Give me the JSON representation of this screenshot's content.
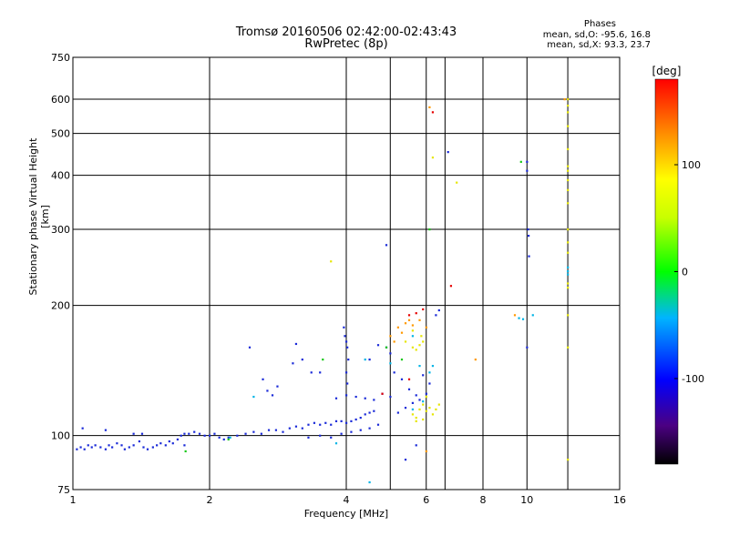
{
  "chart_data": {
    "type": "scatter",
    "title": "Tromsø 20160506 02:42:00-02:43:43",
    "subtitle": "RwPretec (8p)",
    "xlabel": "Frequency [MHz]",
    "ylabel": "Stationary phase Virtual Height [km]",
    "x_scale": "log",
    "y_scale": "log",
    "xlim": [
      1,
      16
    ],
    "ylim": [
      75,
      750
    ],
    "x_ticks": [
      "1",
      "2",
      "4",
      "6",
      "8",
      "10",
      "16"
    ],
    "x_tick_values": [
      1,
      2,
      4,
      6,
      8,
      10,
      16
    ],
    "y_ticks": [
      "75",
      "100",
      "200",
      "300",
      "400",
      "500",
      "600",
      "750"
    ],
    "y_tick_values": [
      75,
      100,
      200,
      300,
      400,
      500,
      600,
      750
    ],
    "grid": true,
    "phases_header": "Phases",
    "phases_o": "mean, sd,O: -95.6, 16.8",
    "phases_x": "mean, sd,X:  93.3, 23.7",
    "colorbar": {
      "label": "[deg]",
      "ticks": [
        "100",
        "0",
        "-100"
      ],
      "tick_values": [
        100,
        0,
        -100
      ],
      "range": [
        -180,
        180
      ]
    },
    "series": [
      {
        "values": [
          [
            1.02,
            93
          ],
          [
            1.04,
            94
          ],
          [
            1.06,
            93
          ],
          [
            1.08,
            95
          ],
          [
            1.1,
            94
          ],
          [
            1.12,
            95
          ],
          [
            1.15,
            94
          ],
          [
            1.18,
            93
          ],
          [
            1.2,
            95
          ],
          [
            1.22,
            94
          ],
          [
            1.25,
            96
          ],
          [
            1.28,
            95
          ],
          [
            1.3,
            93
          ],
          [
            1.33,
            94
          ],
          [
            1.36,
            95
          ],
          [
            1.4,
            97
          ],
          [
            1.43,
            94
          ],
          [
            1.46,
            93
          ],
          [
            1.5,
            94
          ],
          [
            1.53,
            95
          ],
          [
            1.56,
            96
          ],
          [
            1.6,
            95
          ],
          [
            1.63,
            97
          ],
          [
            1.66,
            96
          ],
          [
            1.7,
            98
          ],
          [
            1.73,
            100
          ],
          [
            1.76,
            101
          ],
          [
            1.8,
            101
          ],
          [
            1.85,
            102
          ],
          [
            1.9,
            101
          ],
          [
            1.95,
            100
          ],
          [
            2.0,
            100
          ],
          [
            2.05,
            101
          ],
          [
            2.1,
            99
          ],
          [
            2.15,
            98
          ],
          [
            2.2,
            99
          ],
          [
            2.3,
            100
          ],
          [
            2.4,
            101
          ],
          [
            2.5,
            102
          ],
          [
            2.6,
            101
          ],
          [
            2.7,
            103
          ],
          [
            2.8,
            103
          ],
          [
            2.9,
            102
          ],
          [
            3.0,
            104
          ],
          [
            3.1,
            105
          ],
          [
            3.2,
            104
          ],
          [
            3.3,
            106
          ],
          [
            3.4,
            107
          ],
          [
            3.5,
            106
          ],
          [
            3.6,
            107
          ],
          [
            3.7,
            106
          ],
          [
            3.8,
            108
          ],
          [
            3.9,
            108
          ],
          [
            4.0,
            107
          ],
          [
            4.1,
            108
          ],
          [
            4.2,
            109
          ],
          [
            4.3,
            110
          ],
          [
            4.4,
            112
          ],
          [
            4.5,
            113
          ],
          [
            4.6,
            114
          ],
          [
            3.3,
            99
          ],
          [
            3.5,
            100
          ],
          [
            3.7,
            99
          ],
          [
            3.9,
            101
          ],
          [
            4.1,
            102
          ],
          [
            4.3,
            103
          ],
          [
            4.5,
            104
          ],
          [
            4.7,
            106
          ],
          [
            3.8,
            122
          ],
          [
            4.0,
            124
          ],
          [
            4.2,
            123
          ],
          [
            4.4,
            122
          ],
          [
            4.6,
            121
          ],
          [
            4.8,
            125
          ],
          [
            5.0,
            123
          ],
          [
            1.05,
            104
          ],
          [
            1.18,
            103
          ],
          [
            1.36,
            101
          ],
          [
            1.42,
            101
          ],
          [
            1.76,
            95
          ],
          [
            2.45,
            160
          ],
          [
            2.62,
            135
          ],
          [
            2.68,
            127
          ],
          [
            2.75,
            124
          ],
          [
            2.82,
            130
          ],
          [
            3.1,
            163
          ],
          [
            3.05,
            147
          ],
          [
            3.2,
            150
          ],
          [
            3.35,
            140
          ],
          [
            3.5,
            140
          ],
          [
            3.95,
            178
          ],
          [
            3.97,
            170
          ],
          [
            4.0,
            165
          ],
          [
            4.02,
            160
          ],
          [
            4.04,
            150
          ],
          [
            4.0,
            140
          ],
          [
            4.02,
            132
          ],
          [
            4.5,
            150
          ],
          [
            4.7,
            162
          ],
          [
            4.9,
            160
          ],
          [
            5.0,
            155
          ],
          [
            5.1,
            140
          ],
          [
            5.3,
            135
          ],
          [
            5.5,
            128
          ],
          [
            5.7,
            124
          ],
          [
            5.9,
            138
          ],
          [
            5.2,
            113
          ],
          [
            5.4,
            116
          ],
          [
            5.6,
            119
          ],
          [
            5.8,
            121
          ],
          [
            6.0,
            125
          ],
          [
            6.1,
            132
          ],
          [
            4.9,
            276
          ],
          [
            6.7,
            453
          ],
          [
            6.3,
            190
          ],
          [
            6.4,
            195
          ],
          [
            5.4,
            88
          ],
          [
            5.7,
            95
          ],
          [
            10.0,
            430
          ],
          [
            10.0,
            410
          ],
          [
            10.05,
            300
          ],
          [
            10.08,
            290
          ],
          [
            10.1,
            260
          ],
          [
            10.0,
            160
          ]
        ]
      },
      {
        "values": [
          [
            2.22,
            99
          ],
          [
            2.5,
            123
          ],
          [
            3.8,
            96
          ],
          [
            4.5,
            78
          ],
          [
            4.4,
            150
          ],
          [
            5.6,
            115
          ],
          [
            5.8,
            145
          ],
          [
            5.9,
            120
          ],
          [
            6.2,
            145
          ],
          [
            5.0,
            147
          ],
          [
            6.1,
            140
          ],
          [
            5.6,
            170
          ],
          [
            9.6,
            187
          ],
          [
            9.8,
            186
          ],
          [
            10.3,
            190
          ],
          [
            12.3,
            245
          ],
          [
            12.3,
            240
          ],
          [
            12.3,
            236
          ]
        ]
      },
      {
        "values": [
          [
            1.77,
            92
          ],
          [
            2.2,
            98
          ],
          [
            3.55,
            150
          ],
          [
            4.9,
            160
          ],
          [
            5.3,
            150
          ],
          [
            9.7,
            430
          ],
          [
            6.1,
            300
          ]
        ]
      },
      {
        "values": [
          [
            5.6,
            112
          ],
          [
            5.7,
            110
          ],
          [
            5.8,
            115
          ],
          [
            5.9,
            118
          ],
          [
            6.0,
            114
          ],
          [
            6.1,
            116
          ],
          [
            6.2,
            112
          ],
          [
            6.3,
            115
          ],
          [
            6.4,
            118
          ],
          [
            5.7,
            108
          ],
          [
            5.9,
            109
          ],
          [
            6.0,
            123
          ],
          [
            5.6,
            160
          ],
          [
            5.7,
            158
          ],
          [
            5.8,
            162
          ],
          [
            5.9,
            165
          ],
          [
            5.85,
            170
          ],
          [
            5.6,
            175
          ],
          [
            5.4,
            165
          ],
          [
            12.3,
            600
          ],
          [
            12.3,
            580
          ],
          [
            12.3,
            560
          ],
          [
            12.3,
            520
          ],
          [
            12.3,
            460
          ],
          [
            12.3,
            420
          ],
          [
            12.3,
            410
          ],
          [
            12.3,
            390
          ],
          [
            12.3,
            370
          ],
          [
            12.3,
            345
          ],
          [
            12.3,
            300
          ],
          [
            12.3,
            280
          ],
          [
            12.3,
            265
          ],
          [
            12.3,
            225
          ],
          [
            12.3,
            220
          ],
          [
            12.3,
            190
          ],
          [
            12.3,
            160
          ],
          [
            12.3,
            88
          ],
          [
            7.0,
            385
          ],
          [
            6.2,
            440
          ],
          [
            3.7,
            253
          ]
        ]
      },
      {
        "values": [
          [
            5.2,
            178
          ],
          [
            5.4,
            182
          ],
          [
            5.5,
            185
          ],
          [
            5.6,
            180
          ],
          [
            5.8,
            185
          ],
          [
            6.0,
            178
          ],
          [
            5.0,
            170
          ],
          [
            5.1,
            165
          ],
          [
            5.3,
            173
          ],
          [
            6.1,
            575
          ],
          [
            7.7,
            150
          ],
          [
            9.4,
            190
          ],
          [
            12.1,
            600
          ],
          [
            6.0,
            92
          ]
        ]
      },
      {
        "values": [
          [
            5.5,
            190
          ],
          [
            5.7,
            192
          ],
          [
            5.9,
            196
          ],
          [
            6.2,
            560
          ],
          [
            6.8,
            222
          ],
          [
            5.5,
            135
          ],
          [
            4.8,
            125
          ]
        ]
      }
    ]
  }
}
